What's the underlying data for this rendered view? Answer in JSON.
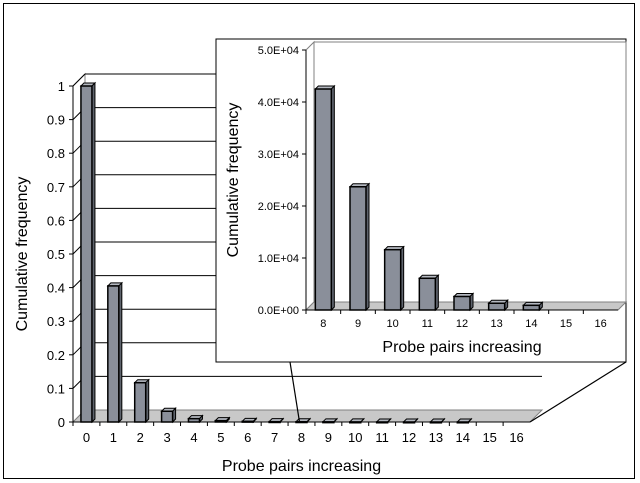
{
  "chart_data": [
    {
      "type": "bar",
      "role": "main",
      "categories": [
        "0",
        "1",
        "2",
        "3",
        "4",
        "5",
        "6",
        "7",
        "8",
        "9",
        "10",
        "11",
        "12",
        "13",
        "14",
        "15",
        "16"
      ],
      "values": [
        1,
        0.405,
        0.117,
        0.032,
        0.01,
        0.004,
        0.002,
        0.001,
        0.0008,
        0.0005,
        0.0002,
        0.0001,
        5e-05,
        2e-05,
        1e-05,
        0,
        0
      ],
      "title": "",
      "xlabel": "Probe pairs increasing",
      "ylabel": "Cumulative frequency",
      "ylim": [
        0,
        1
      ],
      "yticks": [
        "0",
        "0.1",
        "0.2",
        "0.3",
        "0.4",
        "0.5",
        "0.6",
        "0.7",
        "0.8",
        "0.9",
        "1"
      ],
      "grid": true,
      "bar_color": "#8a8f9a"
    },
    {
      "type": "bar",
      "role": "inset",
      "categories": [
        "8",
        "9",
        "10",
        "11",
        "12",
        "13",
        "14",
        "15",
        "16"
      ],
      "values": [
        42500,
        23700,
        11600,
        6100,
        2600,
        1300,
        900,
        0,
        0
      ],
      "title": "",
      "xlabel": "Probe pairs increasing",
      "ylabel": "Cumulative frequency",
      "ylim": [
        0,
        50000
      ],
      "yticks": [
        "0.0E+00",
        "1.0E+04",
        "2.0E+04",
        "3.0E+04",
        "4.0E+04",
        "5.0E+04"
      ],
      "grid": false,
      "bar_color": "#8a8f9a"
    }
  ]
}
